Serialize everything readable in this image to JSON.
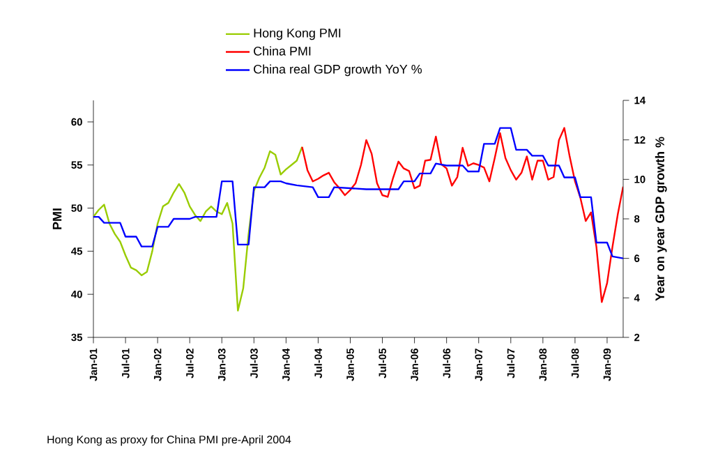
{
  "chart_data": {
    "type": "line",
    "ylabel": "PMI",
    "y2label": "Year on year GDP growth %",
    "xlim": [
      "2001-01",
      "2009-04"
    ],
    "xticks": [
      {
        "value": "2001-01",
        "label": "Jan-01"
      },
      {
        "value": "2001-07",
        "label": "Jul-01"
      },
      {
        "value": "2002-01",
        "label": "Jan-02"
      },
      {
        "value": "2002-07",
        "label": "Jul-02"
      },
      {
        "value": "2003-01",
        "label": "Jan-03"
      },
      {
        "value": "2003-07",
        "label": "Jul-03"
      },
      {
        "value": "2004-01",
        "label": "Jan-04"
      },
      {
        "value": "2004-07",
        "label": "Jul-04"
      },
      {
        "value": "2005-01",
        "label": "Jan-05"
      },
      {
        "value": "2005-07",
        "label": "Jul-05"
      },
      {
        "value": "2006-01",
        "label": "Jan-06"
      },
      {
        "value": "2006-07",
        "label": "Jul-06"
      },
      {
        "value": "2007-01",
        "label": "Jan-07"
      },
      {
        "value": "2007-07",
        "label": "Jul-07"
      },
      {
        "value": "2008-01",
        "label": "Jan-08"
      },
      {
        "value": "2008-07",
        "label": "Jul-08"
      },
      {
        "value": "2009-01",
        "label": "Jan-09"
      }
    ],
    "ylim": [
      35,
      62.5
    ],
    "yticks": [
      35,
      40,
      45,
      50,
      55,
      60
    ],
    "y2lim": [
      2,
      14
    ],
    "y2ticks": [
      2,
      4,
      6,
      8,
      10,
      12,
      14
    ],
    "legend": "top",
    "annotations": [
      "Hong Kong as proxy for China PMI pre-April 2004"
    ],
    "series": [
      {
        "name": "Hong Kong PMI",
        "color": "#99cc00",
        "x": [
          "2001-01",
          "2001-02",
          "2001-03",
          "2001-04",
          "2001-05",
          "2001-06",
          "2001-07",
          "2001-08",
          "2001-09",
          "2001-10",
          "2001-11",
          "2001-12",
          "2002-01",
          "2002-02",
          "2002-03",
          "2002-04",
          "2002-05",
          "2002-06",
          "2002-07",
          "2002-08",
          "2002-09",
          "2002-10",
          "2002-11",
          "2002-12",
          "2003-01",
          "2003-02",
          "2003-03",
          "2003-04",
          "2003-05",
          "2003-06",
          "2003-07",
          "2003-08",
          "2003-09",
          "2003-10",
          "2003-11",
          "2003-12",
          "2004-01",
          "2004-02",
          "2004-03",
          "2004-04"
        ],
        "values": [
          49.0,
          49.8,
          50.4,
          48.2,
          47.0,
          46.1,
          44.5,
          43.1,
          42.8,
          42.2,
          42.6,
          45.0,
          48.2,
          50.2,
          50.6,
          51.8,
          52.8,
          51.8,
          50.2,
          49.2,
          48.5,
          49.6,
          50.2,
          49.6,
          49.3,
          50.6,
          48.2,
          38.1,
          40.7,
          47.0,
          52.0,
          53.5,
          54.7,
          56.6,
          56.2,
          53.9,
          54.5,
          55.0,
          55.5,
          57.1
        ]
      },
      {
        "name": "China PMI",
        "color": "#ff0000",
        "x": [
          "2004-04",
          "2004-05",
          "2004-06",
          "2004-07",
          "2004-08",
          "2004-09",
          "2004-10",
          "2004-11",
          "2004-12",
          "2005-01",
          "2005-02",
          "2005-03",
          "2005-04",
          "2005-05",
          "2005-06",
          "2005-07",
          "2005-08",
          "2005-09",
          "2005-10",
          "2005-11",
          "2005-12",
          "2006-01",
          "2006-02",
          "2006-03",
          "2006-04",
          "2006-05",
          "2006-06",
          "2006-07",
          "2006-08",
          "2006-09",
          "2006-10",
          "2006-11",
          "2006-12",
          "2007-01",
          "2007-02",
          "2007-03",
          "2007-04",
          "2007-05",
          "2007-06",
          "2007-07",
          "2007-08",
          "2007-09",
          "2007-10",
          "2007-11",
          "2007-12",
          "2008-01",
          "2008-02",
          "2008-03",
          "2008-04",
          "2008-05",
          "2008-06",
          "2008-07",
          "2008-08",
          "2008-09",
          "2008-10",
          "2008-11",
          "2008-12",
          "2009-01",
          "2009-02",
          "2009-03",
          "2009-04"
        ],
        "values": [
          57.1,
          54.4,
          53.1,
          53.4,
          53.8,
          54.1,
          53.0,
          52.3,
          51.5,
          52.1,
          52.9,
          55.0,
          57.9,
          56.3,
          52.9,
          51.5,
          51.3,
          53.5,
          55.4,
          54.6,
          54.3,
          52.3,
          52.6,
          55.5,
          55.6,
          58.3,
          55.1,
          54.6,
          52.6,
          53.6,
          57.0,
          54.9,
          55.2,
          55.0,
          54.7,
          53.1,
          55.8,
          58.7,
          55.8,
          54.4,
          53.3,
          54.1,
          56.0,
          53.3,
          55.5,
          55.5,
          53.3,
          53.6,
          57.9,
          59.3,
          56.0,
          53.1,
          51.2,
          48.5,
          49.5,
          45.5,
          39.1,
          41.3,
          45.5,
          49.3,
          52.5
        ]
      },
      {
        "name": "China real GDP growth YoY %",
        "color": "#0000ff",
        "axis": "y2",
        "x": [
          "2001-01",
          "2001-02",
          "2001-03",
          "2001-06",
          "2001-07",
          "2001-09",
          "2001-10",
          "2001-12",
          "2002-01",
          "2002-03",
          "2002-04",
          "2002-07",
          "2002-08",
          "2002-12",
          "2003-01",
          "2003-03",
          "2003-04",
          "2003-06",
          "2003-07",
          "2003-09",
          "2003-10",
          "2003-12",
          "2004-01",
          "2004-03",
          "2004-06",
          "2004-07",
          "2004-09",
          "2004-10",
          "2005-04",
          "2005-10",
          "2005-11",
          "2006-01",
          "2006-02",
          "2006-04",
          "2006-05",
          "2006-07",
          "2006-10",
          "2006-11",
          "2007-01",
          "2007-02",
          "2007-04",
          "2007-05",
          "2007-07",
          "2007-08",
          "2007-10",
          "2007-11",
          "2008-01",
          "2008-02",
          "2008-04",
          "2008-05",
          "2008-07",
          "2008-08",
          "2008-10",
          "2008-11",
          "2009-01",
          "2009-02",
          "2009-04"
        ],
        "values": [
          8.1,
          8.1,
          7.8,
          7.8,
          7.1,
          7.1,
          6.6,
          6.6,
          7.6,
          7.6,
          8.0,
          8.0,
          8.1,
          8.1,
          9.9,
          9.9,
          6.7,
          6.7,
          9.6,
          9.6,
          9.9,
          9.9,
          9.8,
          9.7,
          9.6,
          9.1,
          9.1,
          9.6,
          9.5,
          9.5,
          9.9,
          9.9,
          10.3,
          10.3,
          10.8,
          10.7,
          10.7,
          10.4,
          10.4,
          11.8,
          11.8,
          12.6,
          12.6,
          11.5,
          11.5,
          11.2,
          11.2,
          10.7,
          10.7,
          10.1,
          10.1,
          9.1,
          9.1,
          6.8,
          6.8,
          6.1,
          6.0
        ]
      }
    ]
  }
}
